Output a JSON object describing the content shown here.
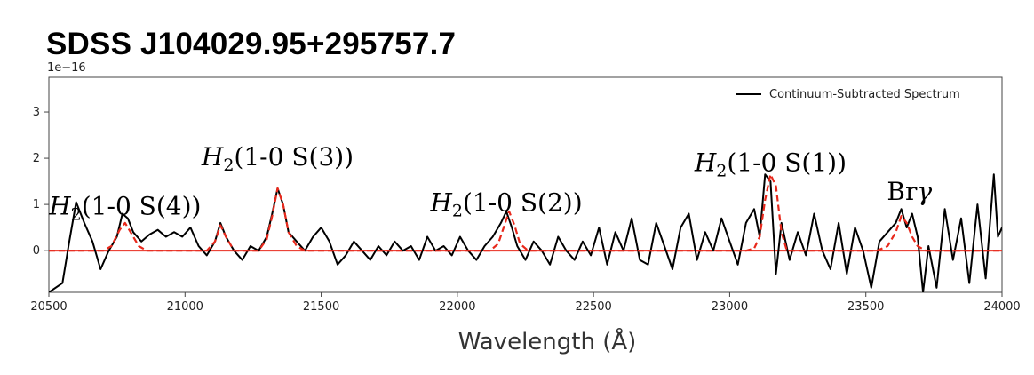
{
  "title": "SDSS J104029.95+295757.7",
  "chart_data": {
    "type": "line",
    "xlabel": "Wavelength (Å)",
    "ylabel": "",
    "y_offset_label": "1e−16",
    "xlim": [
      20500,
      24000
    ],
    "ylim": [
      -0.9,
      3.75
    ],
    "xticks": [
      20500,
      21000,
      21500,
      22000,
      22500,
      23000,
      23500,
      24000
    ],
    "yticks": [
      0,
      1,
      2,
      3
    ],
    "legend": {
      "position": "top-right",
      "entries": [
        "Continuum-Subtracted Spectrum"
      ]
    },
    "colors": {
      "spectrum": "#000000",
      "fit": "#e8291c"
    },
    "series": [
      {
        "name": "Continuum-Subtracted Spectrum",
        "color": "#000000",
        "style": "solid",
        "x": [
          20500,
          20550,
          20575,
          20600,
          20630,
          20660,
          20690,
          20720,
          20750,
          20770,
          20790,
          20810,
          20840,
          20870,
          20900,
          20930,
          20960,
          20990,
          21020,
          21050,
          21080,
          21110,
          21130,
          21150,
          21180,
          21210,
          21240,
          21270,
          21300,
          21320,
          21340,
          21360,
          21380,
          21410,
          21440,
          21470,
          21500,
          21530,
          21560,
          21590,
          21620,
          21650,
          21680,
          21710,
          21740,
          21770,
          21800,
          21830,
          21860,
          21890,
          21920,
          21950,
          21980,
          22010,
          22040,
          22070,
          22100,
          22130,
          22160,
          22180,
          22200,
          22220,
          22250,
          22280,
          22310,
          22340,
          22370,
          22400,
          22430,
          22460,
          22490,
          22520,
          22550,
          22580,
          22610,
          22640,
          22670,
          22700,
          22730,
          22760,
          22790,
          22820,
          22850,
          22880,
          22910,
          22940,
          22970,
          23000,
          23030,
          23060,
          23090,
          23110,
          23130,
          23150,
          23170,
          23190,
          23220,
          23250,
          23280,
          23310,
          23340,
          23370,
          23400,
          23430,
          23460,
          23490,
          23520,
          23550,
          23580,
          23610,
          23630,
          23650,
          23670,
          23690,
          23710,
          23730,
          23760,
          23790,
          23820,
          23850,
          23880,
          23910,
          23940,
          23970,
          23985,
          24000
        ],
        "y": [
          -0.9,
          -0.7,
          0.2,
          1.05,
          0.6,
          0.2,
          -0.4,
          0.0,
          0.3,
          0.8,
          0.7,
          0.4,
          0.2,
          0.35,
          0.45,
          0.3,
          0.4,
          0.3,
          0.5,
          0.1,
          -0.1,
          0.2,
          0.6,
          0.3,
          0.0,
          -0.2,
          0.1,
          0.0,
          0.3,
          0.8,
          1.35,
          1.0,
          0.4,
          0.2,
          0.0,
          0.3,
          0.5,
          0.2,
          -0.3,
          -0.1,
          0.2,
          0.0,
          -0.2,
          0.1,
          -0.1,
          0.2,
          0.0,
          0.1,
          -0.2,
          0.3,
          0.0,
          0.1,
          -0.1,
          0.3,
          0.0,
          -0.2,
          0.1,
          0.3,
          0.6,
          0.85,
          0.5,
          0.1,
          -0.2,
          0.2,
          0.0,
          -0.3,
          0.3,
          0.0,
          -0.2,
          0.2,
          -0.1,
          0.5,
          -0.3,
          0.4,
          0.0,
          0.7,
          -0.2,
          -0.3,
          0.6,
          0.1,
          -0.4,
          0.5,
          0.8,
          -0.2,
          0.4,
          0.0,
          0.7,
          0.2,
          -0.3,
          0.6,
          0.9,
          0.3,
          1.65,
          1.5,
          -0.5,
          0.6,
          -0.2,
          0.4,
          -0.1,
          0.8,
          0.0,
          -0.4,
          0.6,
          -0.5,
          0.5,
          0.0,
          -0.8,
          0.2,
          0.4,
          0.6,
          0.9,
          0.5,
          0.8,
          0.3,
          -0.9,
          0.1,
          -0.8,
          0.9,
          -0.2,
          0.7,
          -0.7,
          1.0,
          -0.6,
          1.65,
          0.3,
          0.5
        ]
      },
      {
        "name": "",
        "color": "#e8291c",
        "style": "dashed",
        "x": [
          20500,
          20700,
          20730,
          20760,
          20780,
          20800,
          20830,
          20860,
          21080,
          21110,
          21130,
          21150,
          21180,
          21270,
          21300,
          21320,
          21340,
          21360,
          21380,
          21410,
          21440,
          22120,
          22150,
          22170,
          22190,
          22210,
          22230,
          22260,
          23060,
          23090,
          23110,
          23130,
          23150,
          23170,
          23190,
          23210,
          23540,
          23580,
          23610,
          23630,
          23650,
          23670,
          23690,
          23720,
          24000
        ],
        "y": [
          0,
          0,
          0.1,
          0.45,
          0.6,
          0.4,
          0.1,
          0,
          0,
          0.2,
          0.55,
          0.3,
          0,
          0,
          0.25,
          0.75,
          1.35,
          1.0,
          0.4,
          0.1,
          0,
          0,
          0.15,
          0.5,
          0.85,
          0.55,
          0.15,
          0,
          0,
          0.05,
          0.3,
          1.1,
          1.65,
          1.4,
          0.4,
          0,
          0,
          0.1,
          0.4,
          0.75,
          0.6,
          0.3,
          0.1,
          0,
          0
        ]
      }
    ],
    "annotations": [
      {
        "base": "H",
        "sub": "2",
        "rest": "(1-0 S(4))",
        "x": 20780,
        "y": 0.78
      },
      {
        "base": "H",
        "sub": "2",
        "rest": "(1-0 S(3))",
        "x": 21340,
        "y": 1.85
      },
      {
        "base": "H",
        "sub": "2",
        "rest": "(1-0 S(2))",
        "x": 22180,
        "y": 0.86
      },
      {
        "base": "H",
        "sub": "2",
        "rest": "(1-0 S(1))",
        "x": 23150,
        "y": 1.72
      },
      {
        "base": "Br",
        "sub": "",
        "rest": "γ",
        "x": 23660,
        "y": 1.1
      }
    ]
  }
}
